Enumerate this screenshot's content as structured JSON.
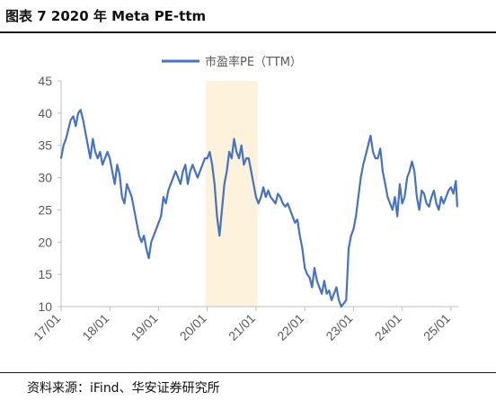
{
  "figure": {
    "title": "图表 7 2020 年 Meta PE-ttm",
    "source": "资料来源：iFind、华安证券研究所"
  },
  "chart_data": {
    "type": "line",
    "title": "",
    "xlabel": "",
    "ylabel": "",
    "ylim": [
      10,
      45
    ],
    "yticks": [
      10,
      15,
      20,
      25,
      30,
      35,
      40,
      45
    ],
    "xticks": [
      "17/01",
      "18/01",
      "19/01",
      "20/01",
      "21/01",
      "22/01",
      "23/01",
      "24/01",
      "25/01"
    ],
    "xlim": [
      2017.0,
      2025.15
    ],
    "grid": false,
    "legend_position": "top-center",
    "line_color": "#4472C4",
    "highlight_color": "#FDF3DC",
    "highlight_range": [
      "2020/01",
      "2021/01"
    ],
    "series": [
      {
        "name": "市盈率PE（TTM）",
        "x": [
          2017.0,
          2017.05,
          2017.1,
          2017.15,
          2017.2,
          2017.25,
          2017.3,
          2017.35,
          2017.4,
          2017.45,
          2017.5,
          2017.55,
          2017.6,
          2017.65,
          2017.7,
          2017.75,
          2017.8,
          2017.85,
          2017.9,
          2017.95,
          2018.0,
          2018.05,
          2018.1,
          2018.15,
          2018.2,
          2018.25,
          2018.3,
          2018.35,
          2018.4,
          2018.45,
          2018.5,
          2018.55,
          2018.6,
          2018.65,
          2018.7,
          2018.75,
          2018.8,
          2018.85,
          2018.9,
          2018.95,
          2019.0,
          2019.05,
          2019.1,
          2019.15,
          2019.2,
          2019.25,
          2019.3,
          2019.35,
          2019.4,
          2019.45,
          2019.5,
          2019.55,
          2019.6,
          2019.65,
          2019.7,
          2019.75,
          2019.8,
          2019.85,
          2019.9,
          2019.95,
          2020.0,
          2020.05,
          2020.1,
          2020.15,
          2020.2,
          2020.25,
          2020.3,
          2020.35,
          2020.4,
          2020.45,
          2020.5,
          2020.55,
          2020.6,
          2020.65,
          2020.7,
          2020.75,
          2020.8,
          2020.85,
          2020.9,
          2020.95,
          2021.0,
          2021.05,
          2021.1,
          2021.15,
          2021.2,
          2021.25,
          2021.3,
          2021.35,
          2021.4,
          2021.45,
          2021.5,
          2021.55,
          2021.6,
          2021.65,
          2021.7,
          2021.75,
          2021.8,
          2021.85,
          2021.9,
          2021.95,
          2022.0,
          2022.05,
          2022.1,
          2022.15,
          2022.2,
          2022.25,
          2022.3,
          2022.35,
          2022.4,
          2022.45,
          2022.5,
          2022.55,
          2022.6,
          2022.65,
          2022.7,
          2022.75,
          2022.8,
          2022.85,
          2022.9,
          2022.95,
          2023.0,
          2023.05,
          2023.1,
          2023.15,
          2023.2,
          2023.25,
          2023.3,
          2023.35,
          2023.4,
          2023.45,
          2023.5,
          2023.55,
          2023.6,
          2023.65,
          2023.7,
          2023.75,
          2023.8,
          2023.85,
          2023.9,
          2023.95,
          2024.0,
          2024.05,
          2024.1,
          2024.15,
          2024.2,
          2024.25,
          2024.3,
          2024.35,
          2024.4,
          2024.45,
          2024.5,
          2024.55,
          2024.6,
          2024.65,
          2024.7,
          2024.75,
          2024.8,
          2024.85,
          2024.9,
          2024.95,
          2025.0,
          2025.05,
          2025.1,
          2025.13
        ],
        "values": [
          33,
          35,
          36,
          37.5,
          39,
          39.5,
          38,
          40,
          40.5,
          39,
          37,
          35,
          33,
          36,
          34,
          33,
          34,
          32,
          33,
          34,
          33,
          31,
          29,
          32,
          30.5,
          27,
          26,
          29,
          28,
          27,
          25,
          23,
          21,
          20,
          21,
          19,
          17.5,
          20,
          21,
          22,
          23,
          24,
          27,
          26,
          28,
          29,
          30,
          31,
          30,
          29,
          31,
          32,
          29,
          31,
          32,
          31,
          30,
          31,
          32,
          33,
          33,
          34,
          32,
          29,
          24,
          21,
          25,
          29,
          31,
          34,
          33,
          36,
          34,
          33,
          35,
          32,
          33,
          33,
          31,
          29,
          27,
          26,
          27,
          28.5,
          27,
          28,
          27,
          26.5,
          26,
          27.5,
          27,
          26,
          25.5,
          26,
          25,
          24,
          23,
          23.5,
          21,
          19,
          16,
          15,
          14.5,
          13,
          16,
          14,
          13,
          12,
          14,
          12,
          12.5,
          11,
          12,
          13,
          11,
          10,
          10.5,
          11,
          19,
          21,
          22,
          24,
          27,
          30,
          32,
          33.5,
          35,
          36.5,
          34,
          33,
          33,
          34.5,
          31,
          29,
          27,
          26,
          25,
          27,
          24,
          29,
          26,
          27,
          30,
          31,
          32.5,
          31,
          27,
          25,
          28,
          27.5,
          26,
          25.5,
          27,
          28,
          26,
          25,
          27,
          26,
          27,
          28,
          28.5,
          27.5,
          29.5,
          25.5
        ]
      }
    ]
  }
}
